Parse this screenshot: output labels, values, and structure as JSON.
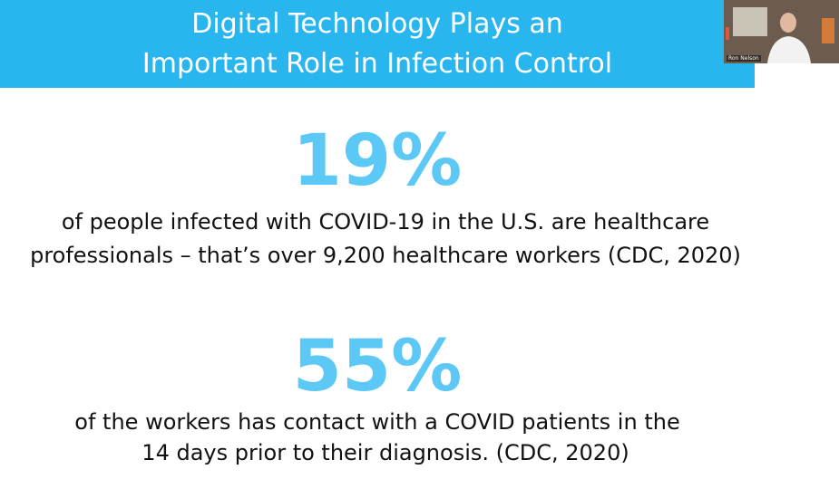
{
  "header": {
    "title_lines": [
      "Digital Technology Plays an",
      "Important Role in Infection Control"
    ]
  },
  "stats": [
    {
      "figure": "19%",
      "description_lines": [
        "of people infected with COVID-19 in the U.S. are healthcare",
        "professionals – that’s over 9,200 healthcare workers (CDC, 2020)"
      ]
    },
    {
      "figure": "55%",
      "description_lines": [
        "of the workers has contact with a COVID patients in the",
        "14 days prior to their diagnosis. (CDC, 2020)"
      ]
    }
  ],
  "video": {
    "participant_name": "Ron Nelson"
  }
}
